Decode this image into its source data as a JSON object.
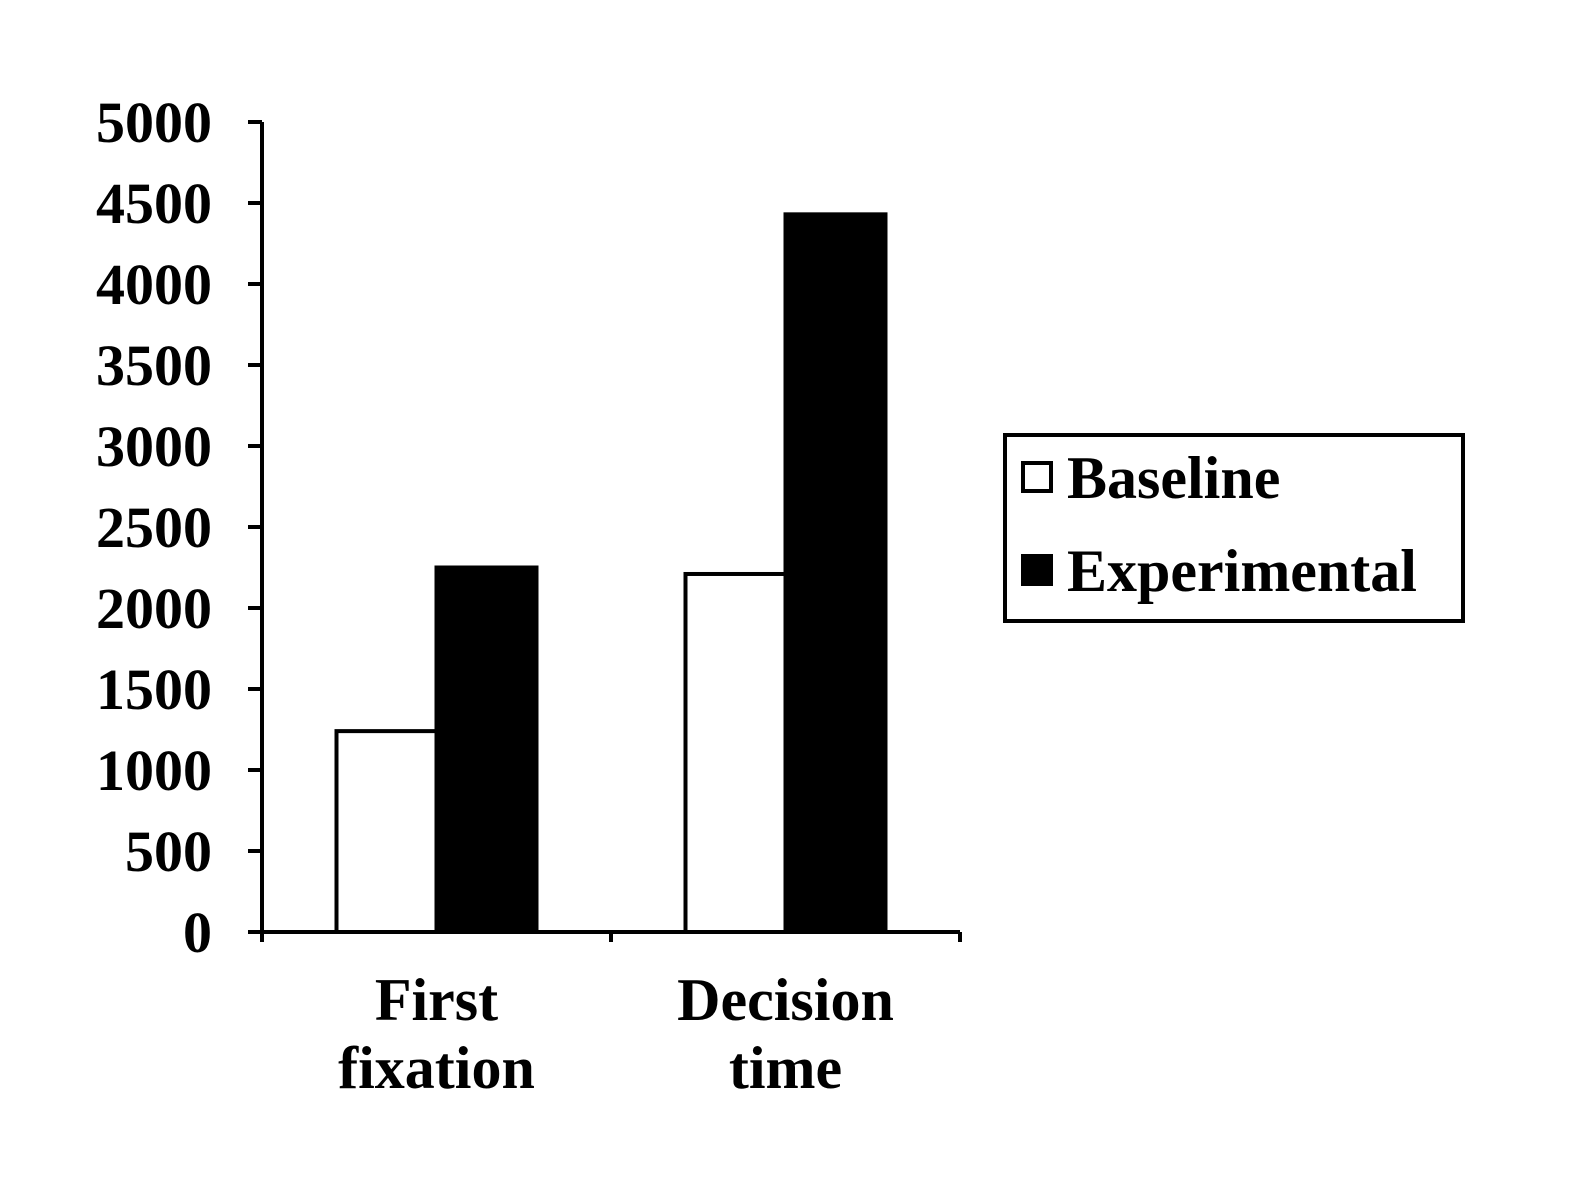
{
  "chart_data": {
    "type": "bar",
    "title": "",
    "xlabel": "",
    "ylabel": "",
    "categories": [
      [
        "First",
        "fixation"
      ],
      [
        "Decision",
        "time"
      ]
    ],
    "series": [
      {
        "name": "Baseline",
        "values": [
          1240,
          2210
        ],
        "color": "#ffffff",
        "stroke": "#000000"
      },
      {
        "name": "Experimental",
        "values": [
          2250,
          4430
        ],
        "color": "#000000",
        "stroke": "#000000"
      }
    ],
    "ylim": [
      0,
      5000
    ],
    "yticks": [
      "0",
      "500",
      "1000",
      "1500",
      "2000",
      "2500",
      "3000",
      "3500",
      "4000",
      "4500",
      "5000"
    ],
    "grid": false,
    "legend_position": "right"
  }
}
